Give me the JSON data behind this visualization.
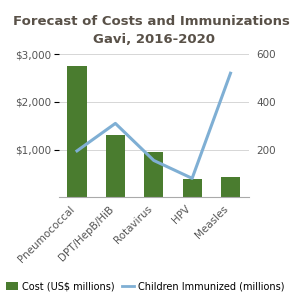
{
  "title_line1": "Forecast of Costs and Immunizations:",
  "title_line2": "Gavi, 2016-2020",
  "categories": [
    "Pneumococcal",
    "DPT/HepB/HiB",
    "Rotavirus",
    "HPV",
    "Measles"
  ],
  "cost_values": [
    2750,
    1300,
    950,
    380,
    430
  ],
  "immunized_values": [
    195,
    310,
    155,
    80,
    520
  ],
  "bar_color": "#4a7c2f",
  "line_color": "#7fafd4",
  "left_ylim": [
    0,
    3000
  ],
  "right_ylim": [
    0,
    600
  ],
  "left_yticks": [
    1000,
    2000,
    3000
  ],
  "right_yticks": [
    200,
    400,
    600
  ],
  "left_yticklabels": [
    "$1,000",
    "$2,000",
    "$3,000"
  ],
  "right_yticklabels": [
    "200",
    "400",
    "600"
  ],
  "legend_cost": "Cost (US$ millions)",
  "legend_immunized": "Children Immunized (millions)",
  "background_color": "#ffffff",
  "title_color": "#595148",
  "title_fontsize": 9.5,
  "tick_fontsize": 7.5,
  "legend_fontsize": 7.0,
  "axis_color": "#aaaaaa"
}
